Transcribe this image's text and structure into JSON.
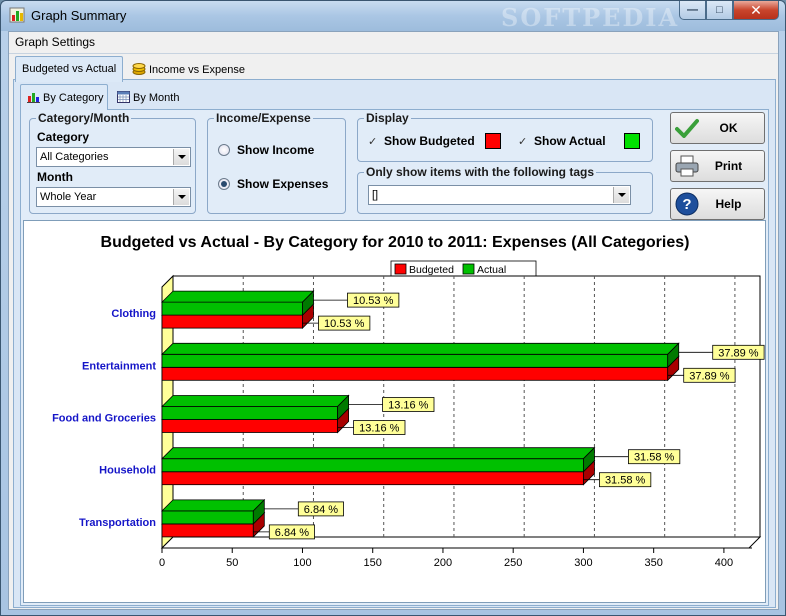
{
  "window": {
    "title": "Graph Summary",
    "watermark": "SOFTPEDIA",
    "icons": {
      "app": "chart-app-icon",
      "minimize": "minimize-icon",
      "maximize": "maximize-icon",
      "close": "close-icon"
    }
  },
  "group_header": {
    "label": "Graph Settings"
  },
  "tabs_main": [
    {
      "label": "Budgeted vs Actual",
      "active": true
    },
    {
      "label": "Income vs Expense",
      "active": false,
      "icon": "coins-icon"
    }
  ],
  "tabs_sub": [
    {
      "label": "By Category",
      "active": true,
      "icon": "bar-chart-icon"
    },
    {
      "label": "By Month",
      "active": false,
      "icon": "calendar-icon"
    }
  ],
  "category_month": {
    "legend": "Category/Month",
    "category_label": "Category",
    "category_value": "All Categories",
    "month_label": "Month",
    "month_value": "Whole Year"
  },
  "income_expense": {
    "legend": "Income/Expense",
    "show_income": "Show Income",
    "show_expenses": "Show Expenses",
    "selected": "expenses"
  },
  "display": {
    "legend": "Display",
    "show_budgeted": "Show Budgeted",
    "show_actual": "Show Actual",
    "budgeted_color": "#ff0000",
    "actual_color": "#00e000"
  },
  "tags": {
    "legend": "Only show items with the following tags",
    "value": "[]"
  },
  "buttons": {
    "ok": "OK",
    "print": "Print",
    "help": "Help"
  },
  "chart_data": {
    "type": "bar",
    "orientation": "horizontal",
    "title": "Budgeted vs Actual - By Category for 2010 to 2011: Expenses (All Categories)",
    "categories": [
      "Clothing",
      "Entertainment",
      "Food and Groceries",
      "Household",
      "Transportation"
    ],
    "series": [
      {
        "name": "Budgeted",
        "color": "#ff0000",
        "values": [
          100,
          360,
          125,
          300,
          65
        ],
        "labels": [
          "10.53 %",
          "37.89 %",
          "13.16 %",
          "31.58 %",
          "6.84 %"
        ]
      },
      {
        "name": "Actual",
        "color": "#00c000",
        "values": [
          100,
          360,
          125,
          300,
          65
        ],
        "labels": [
          "10.53 %",
          "37.89 %",
          "13.16 %",
          "31.58 %",
          "6.84 %"
        ]
      }
    ],
    "xlim": [
      0,
      420
    ],
    "xticks": [
      0,
      50,
      100,
      150,
      200,
      250,
      300,
      350,
      400
    ],
    "grid": true,
    "legend_position": "top"
  }
}
